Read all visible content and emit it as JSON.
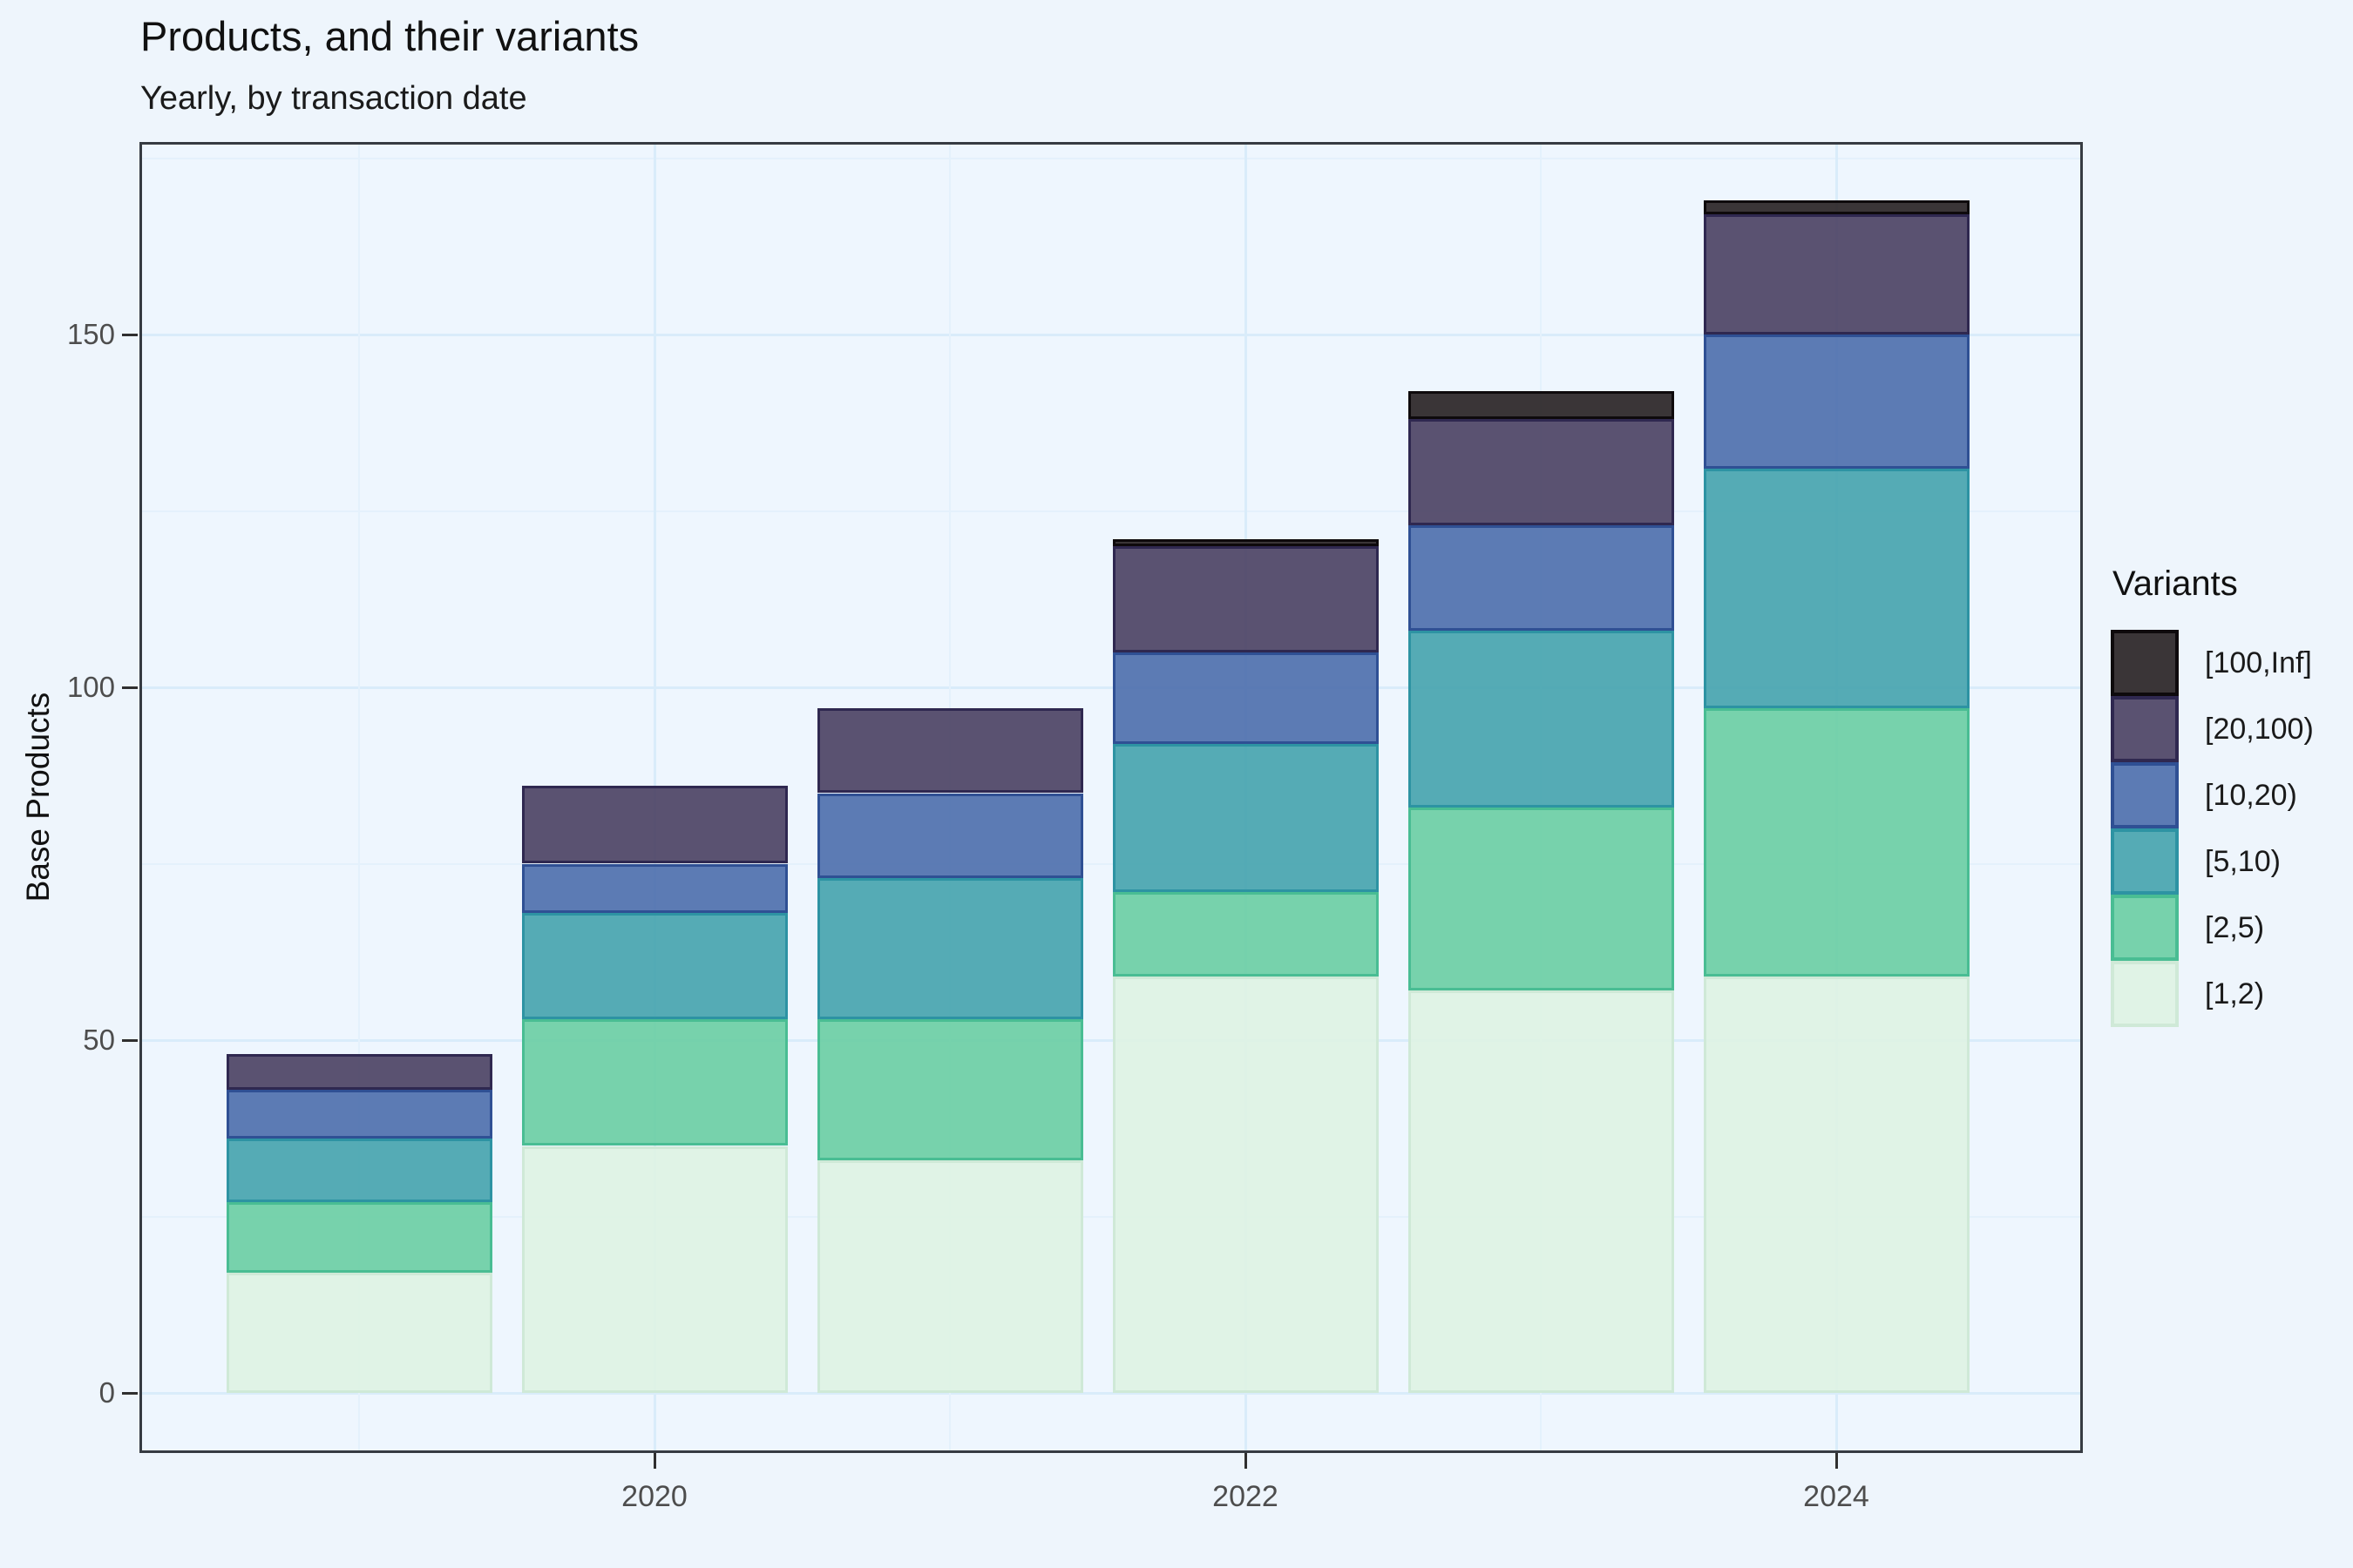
{
  "page": {
    "background": "#eef5fc"
  },
  "chart_data": {
    "type": "bar",
    "stacked": true,
    "title": "Products, and their variants",
    "subtitle": "Yearly, by transaction date",
    "ylabel": "Base Products",
    "xlabel": "",
    "legend_title": "Variants",
    "legend_position": "right",
    "grid": true,
    "x": [
      2019,
      2020,
      2021,
      2022,
      2023,
      2024
    ],
    "x_ticks": [
      {
        "label": "2020",
        "year": 2020
      },
      {
        "label": "2022",
        "year": 2022
      },
      {
        "label": "2024",
        "year": 2024
      }
    ],
    "x_minor_years": [
      2019,
      2021,
      2023
    ],
    "y_ticks": [
      {
        "label": "0",
        "value": 0
      },
      {
        "label": "50",
        "value": 50
      },
      {
        "label": "100",
        "value": 100
      },
      {
        "label": "150",
        "value": 150
      }
    ],
    "y_minor": [
      25,
      75,
      125,
      175
    ],
    "ylim": [
      0,
      177
    ],
    "series": [
      {
        "name": "[1,2)",
        "fill": "#def3e2",
        "border": "#cfe9d7",
        "values": [
          17,
          35,
          33,
          59,
          57,
          59
        ]
      },
      {
        "name": "[2,5)",
        "fill": "#66cda1",
        "border": "#49bd93",
        "values": [
          10,
          18,
          20,
          12,
          26,
          38
        ]
      },
      {
        "name": "[5,10)",
        "fill": "#40a0ab",
        "border": "#2d93a3",
        "values": [
          9,
          15,
          20,
          21,
          25,
          34
        ]
      },
      {
        "name": "[10,20)",
        "fill": "#486aaa",
        "border": "#2f5094",
        "values": [
          7,
          7,
          12,
          13,
          15,
          19
        ]
      },
      {
        "name": "[20,100)",
        "fill": "#453b5d",
        "border": "#2f2850",
        "values": [
          5,
          11,
          12,
          15,
          15,
          17
        ]
      },
      {
        "name": "[100,Inf]",
        "fill": "#211a1b",
        "border": "#0e0a0c",
        "values": [
          0,
          0,
          0,
          1,
          4,
          2
        ]
      }
    ],
    "legend_order_top_to_bottom": [
      "[100,Inf]",
      "[20,100)",
      "[10,20)",
      "[5,10)",
      "[2,5)",
      "[1,2)"
    ],
    "fill_alpha": 0.88,
    "colors": {
      "page_bg": "#eef5fc",
      "panel_bg": "#eef6fe",
      "panel_border": "#363b42",
      "grid_major": "#d9ecfa",
      "grid_minor": "#e4f1fc",
      "tick_mark": "#2f2f2f",
      "tick_label": "#4d4d4d",
      "title_text": "#111111",
      "legend_text": "#1a1a1a"
    }
  }
}
